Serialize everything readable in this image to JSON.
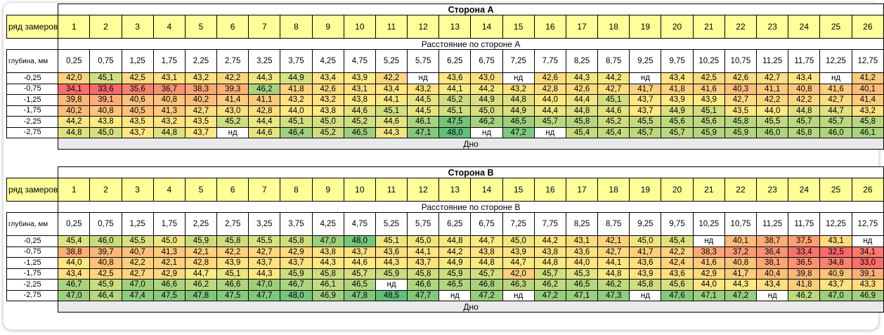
{
  "sections": [
    {
      "title": "Сторона А",
      "row_label": "ряд замеров",
      "indices": [
        "1",
        "2",
        "3",
        "4",
        "5",
        "6",
        "7",
        "8",
        "9",
        "10",
        "11",
        "12",
        "13",
        "14",
        "15",
        "16",
        "17",
        "18",
        "19",
        "20",
        "21",
        "22",
        "23",
        "24",
        "25",
        "26"
      ],
      "distance_label": "Расстояние по стороне А",
      "depth_label": "глубина, мм",
      "positions": [
        "0,25",
        "0,75",
        "1,25",
        "1,75",
        "2,25",
        "2,75",
        "3,25",
        "3,75",
        "4,25",
        "4,75",
        "5,25",
        "5,75",
        "6,25",
        "6,75",
        "7,25",
        "7,75",
        "8,25",
        "8,75",
        "9,25",
        "9,75",
        "10,25",
        "10,75",
        "11,25",
        "11,75",
        "12,25",
        "12,75"
      ],
      "rows": [
        {
          "depth": "-0,25",
          "values": [
            "42,0",
            "45,1",
            "42,5",
            "43,1",
            "43,2",
            "42,2",
            "44,3",
            "44,9",
            "43,4",
            "43,9",
            "42,2",
            "нд",
            "43,6",
            "43,0",
            "нд",
            "42,6",
            "44,3",
            "44,2",
            "нд",
            "43,4",
            "42,5",
            "42,6",
            "42,7",
            "43,4",
            "нд",
            "41,2"
          ]
        },
        {
          "depth": "-0,75",
          "values": [
            "34,1",
            "33,6",
            "35,6",
            "36,7",
            "38,3",
            "39,3",
            "46,2",
            "41,8",
            "42,6",
            "43,1",
            "43,4",
            "43,2",
            "44,1",
            "44,2",
            "43,2",
            "42,8",
            "42,6",
            "42,7",
            "41,7",
            "41,8",
            "41,6",
            "40,3",
            "41,1",
            "40,8",
            "41,6",
            "40,1"
          ]
        },
        {
          "depth": "-1,25",
          "values": [
            "39,8",
            "39,1",
            "40,6",
            "40,8",
            "40,2",
            "41,4",
            "41,1",
            "43,2",
            "43,2",
            "43,8",
            "44,1",
            "44,5",
            "45,2",
            "44,9",
            "44,8",
            "44,0",
            "44,4",
            "45,1",
            "43,7",
            "43,9",
            "43,9",
            "42,7",
            "42,2",
            "42,2",
            "42,7",
            "41,4"
          ]
        },
        {
          "depth": "-1,75",
          "values": [
            "40,2",
            "40,8",
            "40,5",
            "41,3",
            "42,7",
            "43,0",
            "42,8",
            "44,0",
            "43,8",
            "44,6",
            "45,1",
            "44,5",
            "45,1",
            "45,0",
            "44,9",
            "44,4",
            "44,8",
            "44,6",
            "43,7",
            "44,9",
            "45,1",
            "43,5",
            "44,0",
            "44,8",
            "44,7",
            "43,2"
          ]
        },
        {
          "depth": "-2,25",
          "values": [
            "44,2",
            "43,8",
            "43,5",
            "43,2",
            "43,5",
            "45,2",
            "44,4",
            "45,1",
            "45,0",
            "45,2",
            "44,6",
            "46,1",
            "47,5",
            "46,2",
            "46,5",
            "45,7",
            "45,8",
            "45,2",
            "45,5",
            "45,6",
            "45,6",
            "45,8",
            "45,5",
            "45,7",
            "45,7",
            "45,8"
          ]
        },
        {
          "depth": "-2,75",
          "values": [
            "44,8",
            "45,0",
            "43,7",
            "44,8",
            "43,7",
            "нд",
            "44,6",
            "46,4",
            "45,2",
            "46,5",
            "44,3",
            "47,1",
            "48,0",
            "нд",
            "47,2",
            "нд",
            "45,4",
            "45,4",
            "45,7",
            "45,7",
            "45,9",
            "45,9",
            "46,0",
            "45,8",
            "46,0",
            "46,1"
          ]
        }
      ],
      "bottom_label": "Дно"
    },
    {
      "title": "Сторона В",
      "row_label": "ряд замеров",
      "indices": [
        "1",
        "2",
        "3",
        "4",
        "5",
        "6",
        "7",
        "8",
        "9",
        "10",
        "11",
        "12",
        "13",
        "14",
        "15",
        "16",
        "17",
        "18",
        "19",
        "20",
        "21",
        "22",
        "23",
        "24",
        "25",
        "26"
      ],
      "distance_label": "Расстояние по стороне В",
      "depth_label": "глубина, мм",
      "positions": [
        "0,25",
        "0,75",
        "1,25",
        "1,75",
        "2,25",
        "2,75",
        "3,25",
        "3,75",
        "4,25",
        "4,75",
        "5,25",
        "5,75",
        "6,25",
        "6,75",
        "7,25",
        "7,75",
        "8,25",
        "8,75",
        "9,25",
        "9,75",
        "10,25",
        "10,75",
        "11,25",
        "11,75",
        "12,25",
        "12,75"
      ],
      "rows": [
        {
          "depth": "-0,25",
          "values": [
            "45,4",
            "46,0",
            "45,5",
            "45,0",
            "45,9",
            "45,8",
            "45,5",
            "45,8",
            "47,0",
            "48,0",
            "45,1",
            "45,0",
            "44,8",
            "44,7",
            "45,0",
            "44,2",
            "43,1",
            "42,1",
            "45,0",
            "45,4",
            "нд",
            "40,1",
            "38,7",
            "37,5",
            "43,1",
            "нд"
          ]
        },
        {
          "depth": "-0,75",
          "values": [
            "38,8",
            "39,7",
            "40,7",
            "41,3",
            "42,1",
            "42,2",
            "42,7",
            "42,9",
            "43,8",
            "43,7",
            "43,6",
            "44,1",
            "44,2",
            "43,8",
            "43,9",
            "43,8",
            "43,6",
            "42,7",
            "41,7",
            "42,2",
            "38,3",
            "37,2",
            "36,4",
            "33,4",
            "32,5",
            "34,1"
          ]
        },
        {
          "depth": "-1,25",
          "values": [
            "44,0",
            "40,8",
            "42,2",
            "42,1",
            "42,8",
            "43,9",
            "43,7",
            "43,7",
            "44,3",
            "44,6",
            "44,3",
            "43,7",
            "44,9",
            "44,8",
            "44,7",
            "44,8",
            "44,0",
            "44,1",
            "43,6",
            "42,4",
            "41,6",
            "40,8",
            "38,1",
            "36,5",
            "34,8",
            "33,0"
          ]
        },
        {
          "depth": "-1,75",
          "values": [
            "43,4",
            "42,5",
            "42,7",
            "42,9",
            "44,7",
            "45,1",
            "44,3",
            "45,9",
            "45,8",
            "45,7",
            "45,9",
            "45,8",
            "45,9",
            "45,7",
            "42,0",
            "45,7",
            "45,3",
            "44,8",
            "43,9",
            "43,6",
            "42,9",
            "41,7",
            "40,4",
            "39,8",
            "40,9",
            "39,1"
          ]
        },
        {
          "depth": "-2,25",
          "values": [
            "46,7",
            "45,9",
            "47,0",
            "46,6",
            "46,2",
            "46,6",
            "47,0",
            "46,7",
            "46,1",
            "46,5",
            "нд",
            "46,6",
            "46,5",
            "46,8",
            "46,3",
            "46,2",
            "46,5",
            "46,2",
            "45,8",
            "45,6",
            "44,0",
            "44,3",
            "43,4",
            "41,8",
            "43,7",
            "43,3"
          ]
        },
        {
          "depth": "-2,75",
          "values": [
            "47,0",
            "46,4",
            "47,4",
            "47,5",
            "47,8",
            "47,5",
            "47,7",
            "48,0",
            "46,9",
            "47,8",
            "48,5",
            "47,7",
            "нд",
            "47,2",
            "нд",
            "47,2",
            "47,1",
            "47,3",
            "нд",
            "47,6",
            "47,1",
            "47,2",
            "нд",
            "46,2",
            "47,0",
            "46,9"
          ]
        }
      ],
      "bottom_label": "Дно"
    }
  ],
  "scale_colors": {
    "low": "#f8696b",
    "mid": "#ffeb84",
    "high": "#63be7b",
    "na": "#ffffff"
  }
}
